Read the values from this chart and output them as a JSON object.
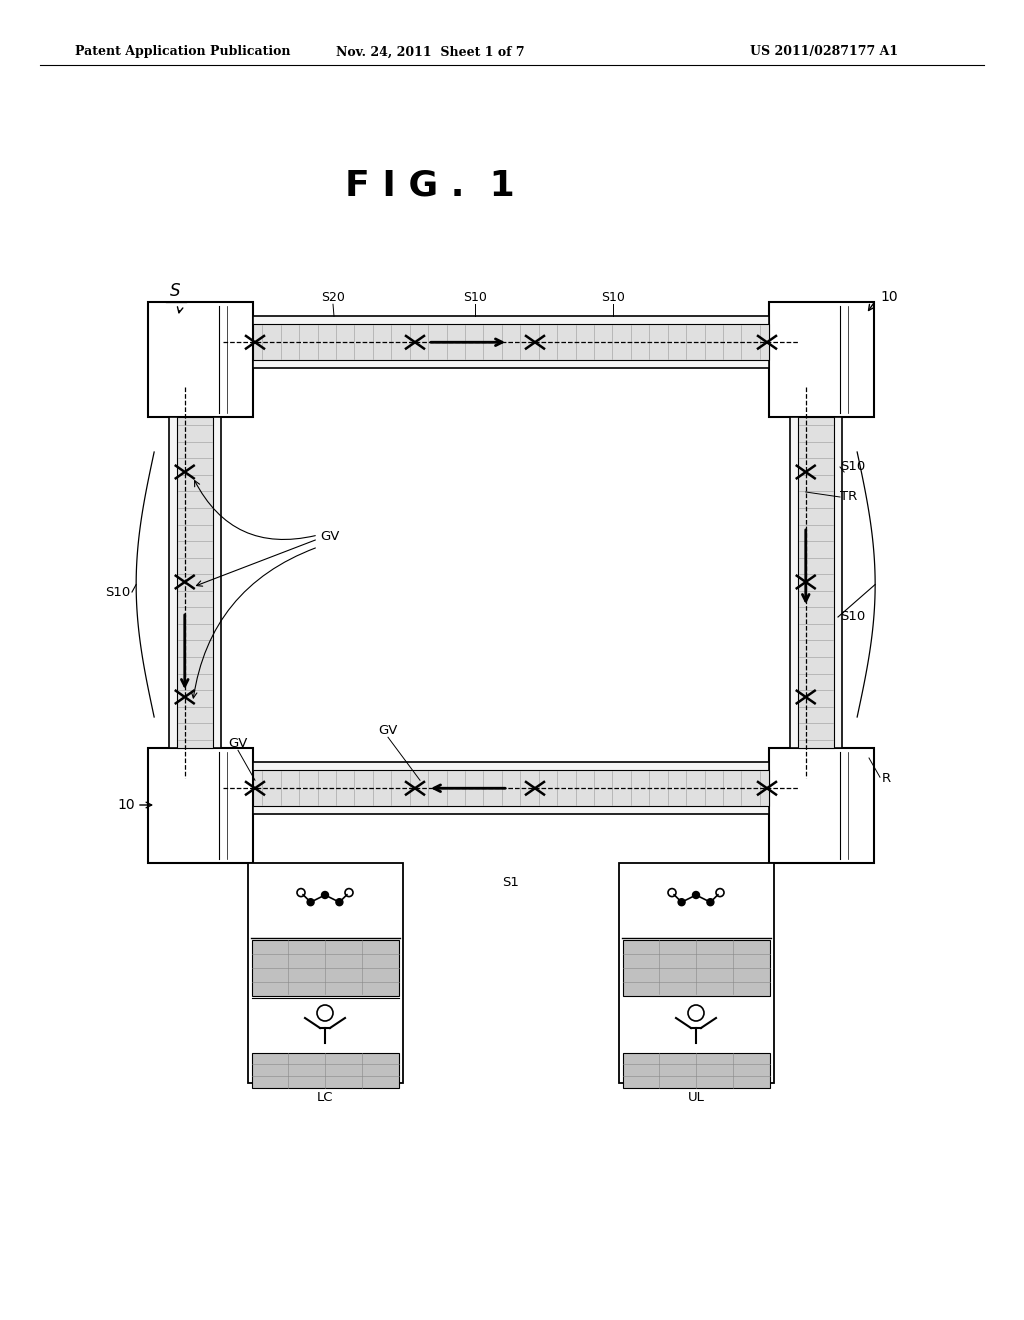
{
  "bg_color": "#ffffff",
  "header_left": "Patent Application Publication",
  "header_mid": "Nov. 24, 2011  Sheet 1 of 7",
  "header_right": "US 2011/0287177 A1",
  "fig_title": "F I G .  1"
}
